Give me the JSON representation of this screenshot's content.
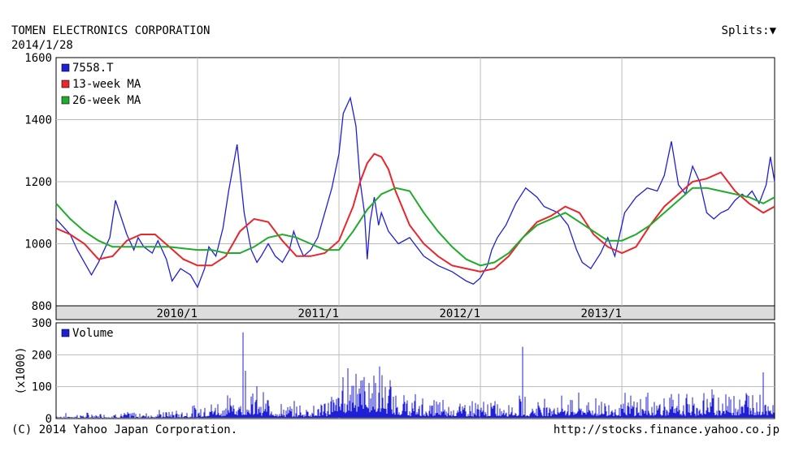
{
  "header": {
    "company": "TOMEN ELECTRONICS CORPORATION",
    "date": "2014/1/28",
    "splits_label": "Splits:",
    "splits_icon": "triangle-down-icon"
  },
  "footer": {
    "copyright": "(C) 2014 Yahoo Japan Corporation.",
    "url": "http://stocks.finance.yahoo.co.jp"
  },
  "chart_data": [
    {
      "type": "line",
      "ticker": "7558.T",
      "ylim": [
        800,
        1600
      ],
      "y_ticks": [
        "800",
        "1000",
        "1200",
        "1400",
        "1600"
      ],
      "x_tick_labels": [
        "2010/1",
        "2011/1",
        "2012/1",
        "2013/1"
      ],
      "x_tick_positions": [
        2010.0,
        2011.0,
        2012.0,
        2013.0
      ],
      "xlim": [
        2009.0,
        2014.08
      ],
      "grid": true,
      "legend_position": "top-left",
      "series": [
        {
          "name": "7558.T",
          "color": "#1f1fd6",
          "x": [
            2009.0,
            2009.1,
            2009.15,
            2009.25,
            2009.3,
            2009.38,
            2009.42,
            2009.5,
            2009.55,
            2009.58,
            2009.62,
            2009.68,
            2009.72,
            2009.78,
            2009.82,
            2009.88,
            2009.95,
            2010.0,
            2010.05,
            2010.08,
            2010.13,
            2010.18,
            2010.22,
            2010.28,
            2010.33,
            2010.38,
            2010.42,
            2010.45,
            2010.5,
            2010.55,
            2010.6,
            2010.65,
            2010.68,
            2010.72,
            2010.75,
            2010.8,
            2010.85,
            2010.9,
            2010.95,
            2011.0,
            2011.03,
            2011.08,
            2011.12,
            2011.15,
            2011.18,
            2011.2,
            2011.22,
            2011.25,
            2011.28,
            2011.3,
            2011.35,
            2011.42,
            2011.5,
            2011.6,
            2011.7,
            2011.8,
            2011.9,
            2011.95,
            2012.0,
            2012.05,
            2012.08,
            2012.12,
            2012.18,
            2012.25,
            2012.32,
            2012.4,
            2012.45,
            2012.55,
            2012.62,
            2012.68,
            2012.72,
            2012.78,
            2012.85,
            2012.9,
            2012.95,
            2013.02,
            2013.1,
            2013.18,
            2013.25,
            2013.3,
            2013.35,
            2013.4,
            2013.45,
            2013.5,
            2013.55,
            2013.6,
            2013.65,
            2013.7,
            2013.75,
            2013.8,
            2013.85,
            2013.88,
            2013.92,
            2013.97,
            2014.02,
            2014.05,
            2014.08
          ],
          "values": [
            1080,
            1030,
            980,
            900,
            940,
            1020,
            1140,
            1030,
            980,
            1020,
            990,
            970,
            1010,
            950,
            880,
            920,
            900,
            860,
            920,
            990,
            960,
            1050,
            1170,
            1320,
            1100,
            980,
            940,
            960,
            1000,
            960,
            940,
            980,
            1040,
            990,
            960,
            980,
            1020,
            1100,
            1180,
            1290,
            1420,
            1470,
            1380,
            1200,
            1100,
            950,
            1070,
            1150,
            1060,
            1100,
            1040,
            1000,
            1020,
            960,
            930,
            910,
            880,
            870,
            890,
            930,
            980,
            1020,
            1060,
            1130,
            1180,
            1150,
            1120,
            1100,
            1060,
            980,
            940,
            920,
            970,
            1020,
            960,
            1100,
            1150,
            1180,
            1170,
            1220,
            1330,
            1190,
            1160,
            1250,
            1200,
            1100,
            1080,
            1100,
            1110,
            1140,
            1160,
            1150,
            1170,
            1130,
            1190,
            1280,
            1200
          ]
        },
        {
          "name": "13-week MA",
          "color": "#e8262c",
          "x": [
            2009.0,
            2009.1,
            2009.2,
            2009.3,
            2009.4,
            2009.5,
            2009.6,
            2009.7,
            2009.8,
            2009.9,
            2010.0,
            2010.1,
            2010.2,
            2010.3,
            2010.4,
            2010.5,
            2010.6,
            2010.7,
            2010.8,
            2010.9,
            2011.0,
            2011.1,
            2011.15,
            2011.2,
            2011.25,
            2011.3,
            2011.35,
            2011.4,
            2011.5,
            2011.6,
            2011.7,
            2011.8,
            2011.9,
            2012.0,
            2012.1,
            2012.2,
            2012.3,
            2012.4,
            2012.5,
            2012.6,
            2012.7,
            2012.8,
            2012.9,
            2013.0,
            2013.1,
            2013.2,
            2013.3,
            2013.4,
            2013.5,
            2013.6,
            2013.7,
            2013.8,
            2013.9,
            2014.0,
            2014.08
          ],
          "values": [
            1050,
            1030,
            1000,
            950,
            960,
            1010,
            1030,
            1030,
            990,
            950,
            930,
            930,
            960,
            1040,
            1080,
            1070,
            1010,
            960,
            960,
            970,
            1010,
            1120,
            1200,
            1260,
            1290,
            1280,
            1240,
            1170,
            1060,
            1000,
            960,
            930,
            920,
            910,
            920,
            960,
            1020,
            1070,
            1090,
            1120,
            1100,
            1030,
            990,
            970,
            990,
            1060,
            1120,
            1160,
            1200,
            1210,
            1230,
            1170,
            1130,
            1100,
            1120
          ]
        },
        {
          "name": "26-week MA",
          "color": "#20ab2b",
          "x": [
            2009.0,
            2009.1,
            2009.2,
            2009.3,
            2009.4,
            2009.5,
            2009.6,
            2009.7,
            2009.8,
            2009.9,
            2010.0,
            2010.1,
            2010.2,
            2010.3,
            2010.4,
            2010.5,
            2010.6,
            2010.7,
            2010.8,
            2010.9,
            2011.0,
            2011.1,
            2011.2,
            2011.3,
            2011.4,
            2011.5,
            2011.6,
            2011.7,
            2011.8,
            2011.9,
            2012.0,
            2012.1,
            2012.2,
            2012.3,
            2012.4,
            2012.5,
            2012.6,
            2012.7,
            2012.8,
            2012.9,
            2013.0,
            2013.1,
            2013.2,
            2013.3,
            2013.4,
            2013.5,
            2013.6,
            2013.7,
            2013.8,
            2013.9,
            2014.0,
            2014.08
          ],
          "values": [
            1130,
            1080,
            1040,
            1010,
            990,
            990,
            990,
            990,
            990,
            985,
            980,
            980,
            970,
            970,
            990,
            1020,
            1030,
            1020,
            1000,
            980,
            980,
            1040,
            1110,
            1160,
            1180,
            1170,
            1100,
            1040,
            990,
            950,
            930,
            940,
            970,
            1020,
            1060,
            1080,
            1100,
            1070,
            1040,
            1010,
            1010,
            1030,
            1060,
            1100,
            1140,
            1180,
            1180,
            1170,
            1160,
            1150,
            1130,
            1150
          ]
        }
      ]
    },
    {
      "type": "bar",
      "series_name": "Volume",
      "color": "#1f1fd6",
      "ylabel": "(x1000)",
      "ylim": [
        0,
        300
      ],
      "y_ticks": [
        "0",
        "100",
        "200",
        "300"
      ],
      "xlim": [
        2009.0,
        2014.08
      ],
      "grid": true,
      "legend_position": "top-left",
      "base_level": [
        {
          "x": 2009.0,
          "value": 5
        },
        {
          "x": 2009.9,
          "value": 10
        },
        {
          "x": 2010.2,
          "value": 25
        },
        {
          "x": 2010.35,
          "value": 40
        },
        {
          "x": 2010.6,
          "value": 15
        },
        {
          "x": 2010.9,
          "value": 20
        },
        {
          "x": 2011.1,
          "value": 70
        },
        {
          "x": 2011.25,
          "value": 60
        },
        {
          "x": 2011.5,
          "value": 25
        },
        {
          "x": 2012.0,
          "value": 20
        },
        {
          "x": 2012.5,
          "value": 25
        },
        {
          "x": 2013.0,
          "value": 25
        },
        {
          "x": 2013.6,
          "value": 30
        },
        {
          "x": 2014.08,
          "value": 35
        }
      ],
      "spikes": [
        {
          "x": 2010.32,
          "value": 270
        },
        {
          "x": 2010.34,
          "value": 150
        },
        {
          "x": 2011.12,
          "value": 140
        },
        {
          "x": 2011.18,
          "value": 130
        },
        {
          "x": 2012.3,
          "value": 225
        },
        {
          "x": 2014.0,
          "value": 145
        }
      ]
    }
  ]
}
